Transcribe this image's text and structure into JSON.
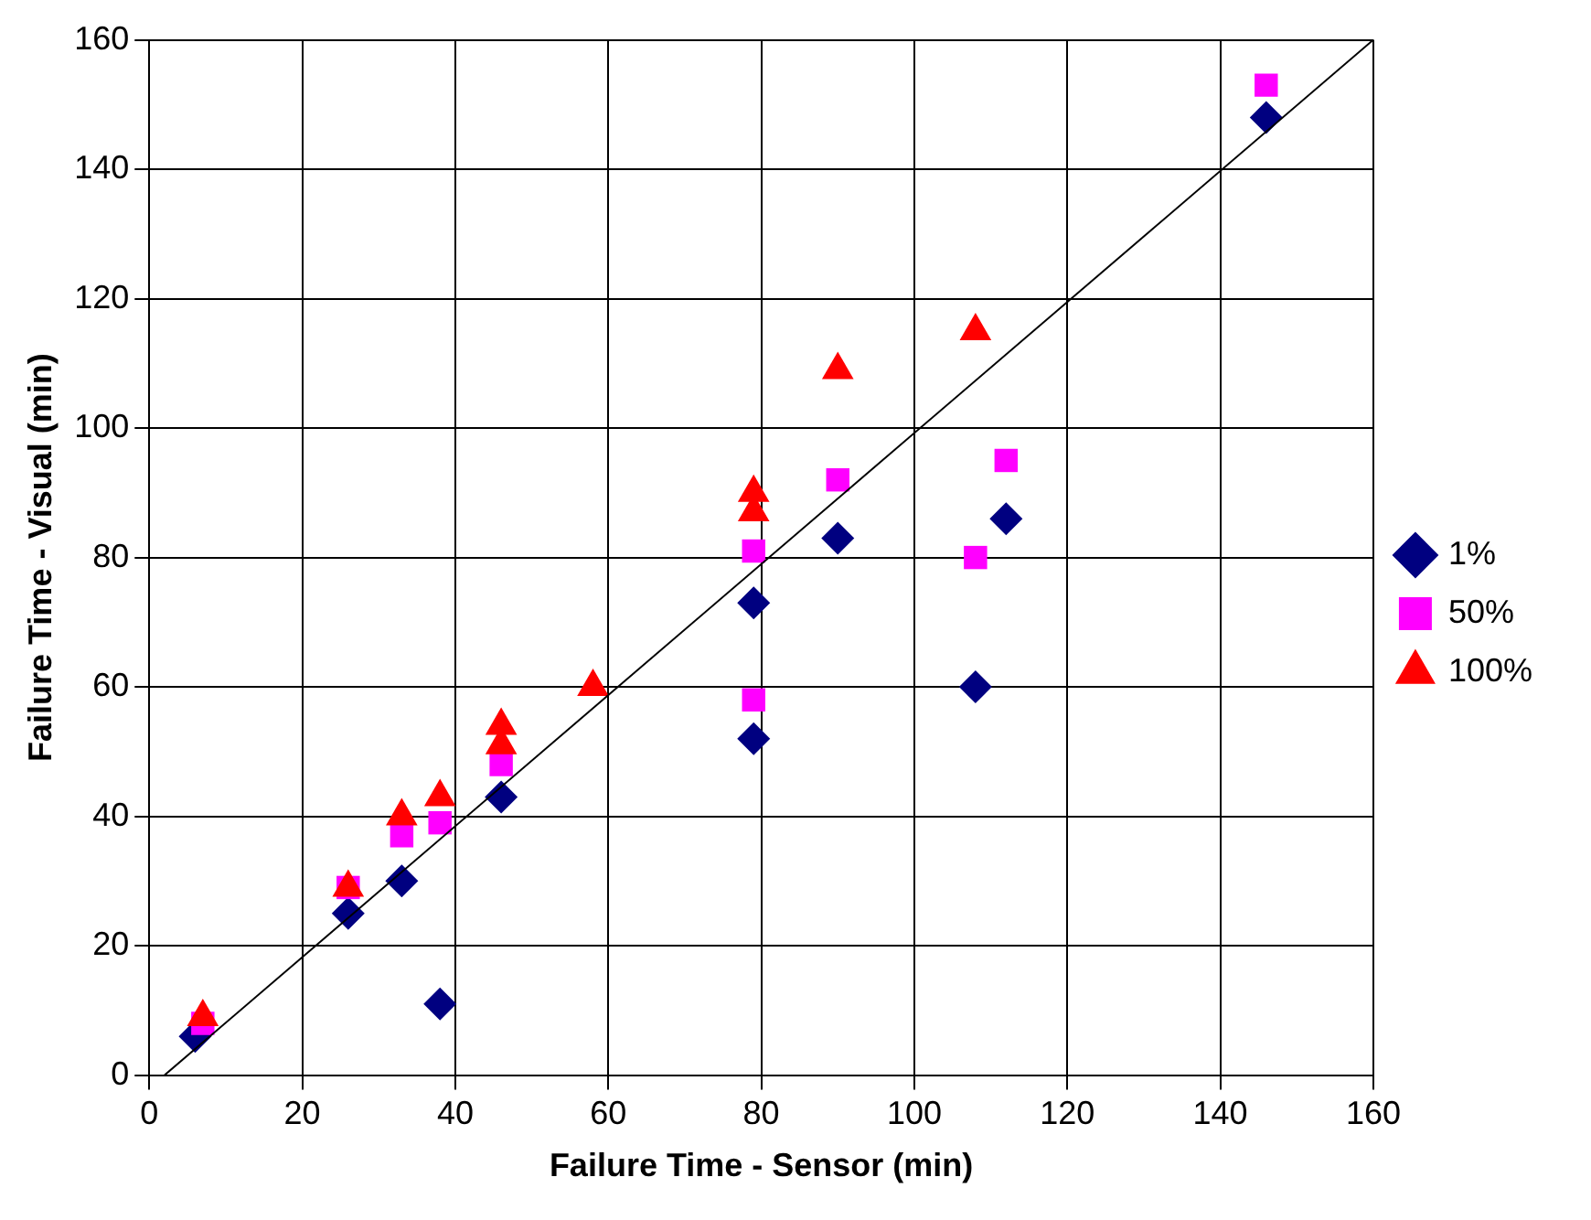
{
  "chart_data": {
    "type": "scatter",
    "xlabel": "Failure Time - Sensor (min)",
    "ylabel": "Failure Time - Visual (min)",
    "xlim": [
      0,
      160
    ],
    "ylim": [
      0,
      160
    ],
    "xticks": [
      0,
      20,
      40,
      60,
      80,
      100,
      120,
      140,
      160
    ],
    "yticks": [
      0,
      20,
      40,
      60,
      80,
      100,
      120,
      140,
      160
    ],
    "grid": true,
    "legend": "right",
    "series": [
      {
        "name": "1%",
        "color": "#000080",
        "marker": "diamond",
        "x": [
          6,
          26,
          33,
          38,
          46,
          79,
          79,
          90,
          108,
          112,
          146
        ],
        "values": [
          6,
          25,
          30,
          11,
          43,
          73,
          52,
          83,
          60,
          86,
          148
        ]
      },
      {
        "name": "50%",
        "color": "#ff00ff",
        "marker": "square",
        "x": [
          7,
          26,
          33,
          38,
          46,
          79,
          79,
          90,
          108,
          112,
          146
        ],
        "values": [
          8,
          29,
          37,
          39,
          48,
          81,
          58,
          92,
          80,
          95,
          153
        ]
      },
      {
        "name": "100%",
        "color": "#ff0000",
        "marker": "triangle",
        "x": [
          7,
          26,
          33,
          38,
          46,
          46,
          58,
          79,
          79,
          90,
          108
        ],
        "values": [
          9,
          29,
          40,
          43,
          51,
          54,
          60,
          87,
          90,
          109,
          115
        ]
      },
      {
        "type": "line",
        "color": "#000000",
        "marker": "none",
        "x": [
          2,
          160
        ],
        "values": [
          0,
          160
        ]
      }
    ]
  }
}
